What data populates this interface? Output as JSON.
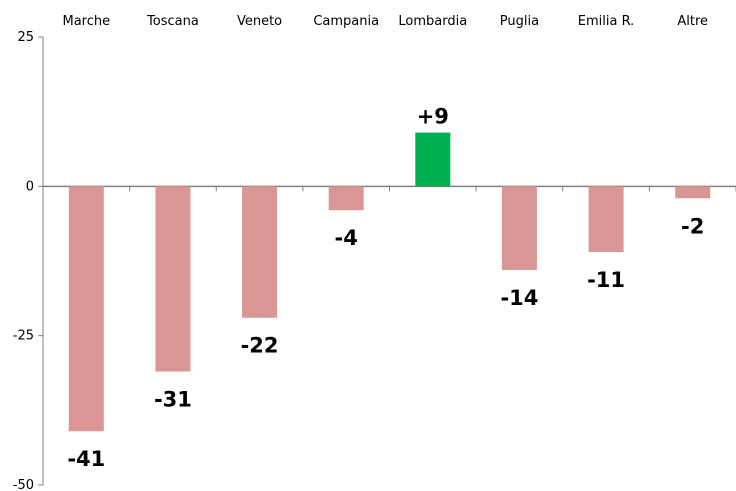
{
  "chart_data": {
    "type": "bar",
    "title": "",
    "xlabel": "",
    "ylabel": "",
    "categories": [
      "Marche",
      "Toscana",
      "Veneto",
      "Campania",
      "Lombardia",
      "Puglia",
      "Emilia R.",
      "Altre"
    ],
    "values": [
      -41,
      -31,
      -22,
      -4,
      9,
      -14,
      -11,
      -2
    ],
    "data_labels": [
      "-41",
      "-31",
      "-22",
      "-4",
      "+9",
      "-14",
      "-11",
      "-2"
    ],
    "ylim": [
      -50,
      25
    ],
    "yticks": [
      25,
      0,
      -25,
      -50
    ],
    "category_axis_position": "top",
    "grid": false,
    "legend": "none",
    "colors": {
      "negative": "#d99694",
      "positive": "#00b050",
      "axis": "#808080"
    }
  }
}
